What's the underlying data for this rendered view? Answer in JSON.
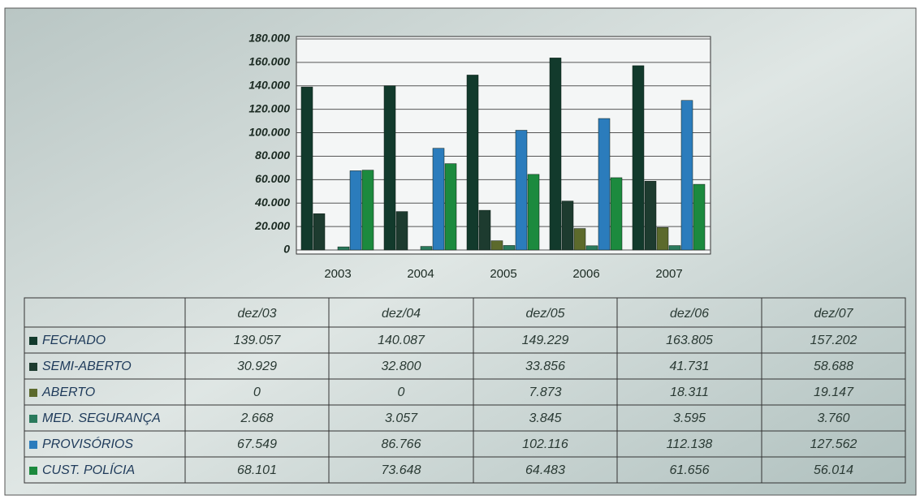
{
  "chart_data": {
    "type": "bar",
    "categories": [
      "2003",
      "2004",
      "2005",
      "2006",
      "2007"
    ],
    "ylim": [
      0,
      180000
    ],
    "yticks": [
      {
        "value": 0,
        "label": "0"
      },
      {
        "value": 20000,
        "label": "20.000"
      },
      {
        "value": 40000,
        "label": "40.000"
      },
      {
        "value": 60000,
        "label": "60.000"
      },
      {
        "value": 80000,
        "label": "80.000"
      },
      {
        "value": 100000,
        "label": "100.000"
      },
      {
        "value": 120000,
        "label": "120.000"
      },
      {
        "value": 140000,
        "label": "140.000"
      },
      {
        "value": 160000,
        "label": "160.000"
      },
      {
        "value": 180000,
        "label": "180.000"
      }
    ],
    "grid": true,
    "table_columns": [
      "dez/03",
      "dez/04",
      "dez/05",
      "dez/06",
      "dez/07"
    ],
    "series": [
      {
        "name": "FECHADO",
        "color": "#123a2c",
        "values": [
          139057,
          140087,
          149229,
          163805,
          157202
        ],
        "value_labels": [
          "139.057",
          "140.087",
          "149.229",
          "163.805",
          "157.202"
        ]
      },
      {
        "name": "SEMI-ABERTO",
        "color": "#1d3b2f",
        "values": [
          30929,
          32800,
          33856,
          41731,
          58688
        ],
        "value_labels": [
          "30.929",
          "32.800",
          "33.856",
          "41.731",
          "58.688"
        ]
      },
      {
        "name": "ABERTO",
        "color": "#5c6a2c",
        "values": [
          0,
          0,
          7873,
          18311,
          19147
        ],
        "value_labels": [
          "0",
          "0",
          "7.873",
          "18.311",
          "19.147"
        ]
      },
      {
        "name": "MED. SEGURANÇA",
        "color": "#2a7a5c",
        "values": [
          2668,
          3057,
          3845,
          3595,
          3760
        ],
        "value_labels": [
          "2.668",
          "3.057",
          "3.845",
          "3.595",
          "3.760"
        ]
      },
      {
        "name": "PROVISÓRIOS",
        "color": "#2b7cbc",
        "values": [
          67549,
          86766,
          102116,
          112138,
          127562
        ],
        "value_labels": [
          "67.549",
          "86.766",
          "102.116",
          "112.138",
          "127.562"
        ]
      },
      {
        "name": "CUST. POLÍCIA",
        "color": "#1c8a3e",
        "values": [
          68101,
          73648,
          64483,
          61656,
          56014
        ],
        "value_labels": [
          "68.101",
          "73.648",
          "64.483",
          "61.656",
          "56.014"
        ]
      }
    ]
  }
}
